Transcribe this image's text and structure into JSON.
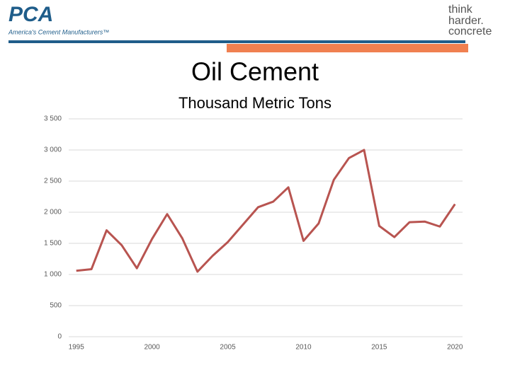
{
  "header": {
    "logo": "PCA",
    "tagline": "America's Cement Manufacturers™",
    "slogan": [
      "think",
      "harder.",
      "concrete"
    ]
  },
  "chart_data": {
    "type": "line",
    "title": "Oil Cement",
    "subtitle": "Thousand Metric Tons",
    "x": [
      1995,
      1996,
      1997,
      1998,
      1999,
      2000,
      2001,
      2002,
      2003,
      2004,
      2005,
      2006,
      2007,
      2008,
      2009,
      2010,
      2011,
      2012,
      2013,
      2014,
      2015,
      2016,
      2017,
      2018,
      2019,
      2020
    ],
    "series": [
      {
        "name": "Oil Cement",
        "color": "#b85450",
        "values": [
          1060,
          1085,
          1710,
          1470,
          1100,
          1570,
          1970,
          1580,
          1045,
          1300,
          1520,
          1800,
          2080,
          2170,
          2400,
          1540,
          1820,
          2520,
          2870,
          3000,
          1780,
          1600,
          1840,
          1850,
          1770,
          2130
        ]
      }
    ],
    "xlim": [
      1994.5,
      2020.5
    ],
    "xticks": [
      1995,
      2000,
      2005,
      2010,
      2015,
      2020
    ],
    "ylim": [
      0,
      3500
    ],
    "yticks": [
      0,
      500,
      {
        "value": 1000,
        "label": "1 000"
      },
      {
        "value": 1500,
        "label": "1 500"
      },
      {
        "value": 2000,
        "label": "2 000"
      },
      {
        "value": 2500,
        "label": "2 500"
      },
      {
        "value": 3000,
        "label": "3 000"
      },
      {
        "value": 3500,
        "label": "3 500"
      }
    ],
    "grid": true
  }
}
